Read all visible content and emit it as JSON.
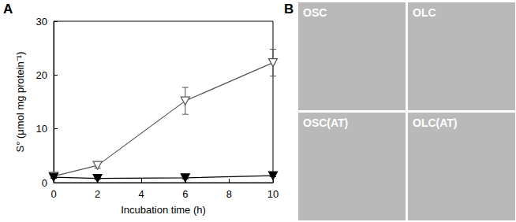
{
  "chart_data": {
    "type": "line",
    "title": "A",
    "x_label": "Incubation time (h)",
    "y_label": "S° (μmol mg protein⁻¹)",
    "x": [
      0,
      2,
      6,
      10
    ],
    "series": [
      {
        "color": "#555555",
        "marker": "triangle_down_open",
        "values": [
          1.2,
          3.2,
          15.2,
          22.3
        ],
        "errors": [
          0.3,
          0.5,
          2.5,
          2.5
        ]
      },
      {
        "color": "#000000",
        "marker": "triangle_down",
        "values": [
          1.0,
          0.8,
          0.9,
          1.3
        ],
        "errors": [
          0.2,
          0.2,
          0.2,
          0.2
        ]
      }
    ],
    "xlim": [
      0,
      10
    ],
    "xticks": [
      0,
      2,
      4,
      6,
      8,
      10
    ],
    "ylim": [
      0,
      30
    ],
    "yticks": [
      0,
      10,
      20,
      30
    ],
    "grid": false
  },
  "panel_b": {
    "title": "B",
    "images": [
      "OSC",
      "OLC",
      "OSC(AT)",
      "OLC(AT)"
    ]
  }
}
